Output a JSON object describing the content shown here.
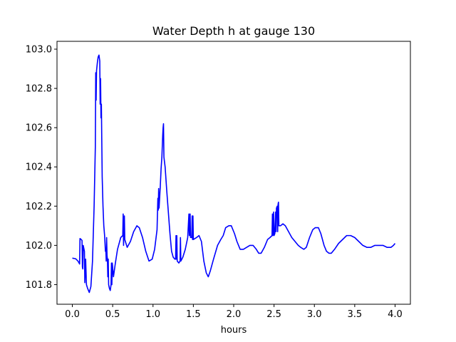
{
  "chart_data": {
    "type": "line",
    "title": "Water Depth h at gauge 130",
    "xlabel": "hours",
    "ylabel": "",
    "xlim": [
      -0.19,
      4.19
    ],
    "ylim": [
      101.7,
      103.04
    ],
    "xticks": [
      0.0,
      0.5,
      1.0,
      1.5,
      2.0,
      2.5,
      3.0,
      3.5,
      4.0
    ],
    "xtick_labels": [
      "0.0",
      "0.5",
      "1.0",
      "1.5",
      "2.0",
      "2.5",
      "3.0",
      "3.5",
      "4.0"
    ],
    "yticks": [
      101.8,
      102.0,
      102.2,
      102.4,
      102.6,
      102.8,
      103.0
    ],
    "ytick_labels": [
      "101.8",
      "102.0",
      "102.2",
      "102.4",
      "102.6",
      "102.8",
      "103.0"
    ],
    "grid": false,
    "legend": "none",
    "series": [
      {
        "color": "#0000ff",
        "points": [
          [
            0.0,
            101.935
          ],
          [
            0.04,
            101.932
          ],
          [
            0.07,
            101.92
          ],
          [
            0.09,
            101.905
          ],
          [
            0.095,
            102.035
          ],
          [
            0.11,
            102.03
          ],
          [
            0.12,
            102.025
          ],
          [
            0.125,
            101.89
          ],
          [
            0.13,
            101.88
          ],
          [
            0.135,
            102.0
          ],
          [
            0.15,
            101.97
          ],
          [
            0.155,
            101.81
          ],
          [
            0.165,
            101.93
          ],
          [
            0.175,
            101.8
          ],
          [
            0.19,
            101.78
          ],
          [
            0.21,
            101.76
          ],
          [
            0.23,
            101.79
          ],
          [
            0.25,
            101.92
          ],
          [
            0.27,
            102.2
          ],
          [
            0.285,
            102.5
          ],
          [
            0.29,
            102.88
          ],
          [
            0.295,
            102.74
          ],
          [
            0.3,
            102.89
          ],
          [
            0.31,
            102.93
          ],
          [
            0.32,
            102.96
          ],
          [
            0.33,
            102.97
          ],
          [
            0.34,
            102.94
          ],
          [
            0.345,
            102.72
          ],
          [
            0.35,
            102.85
          ],
          [
            0.355,
            102.65
          ],
          [
            0.36,
            102.72
          ],
          [
            0.37,
            102.35
          ],
          [
            0.38,
            102.2
          ],
          [
            0.39,
            102.1
          ],
          [
            0.4,
            102.05
          ],
          [
            0.41,
            101.97
          ],
          [
            0.415,
            101.98
          ],
          [
            0.42,
            101.92
          ],
          [
            0.425,
            102.04
          ],
          [
            0.43,
            101.95
          ],
          [
            0.435,
            101.93
          ],
          [
            0.44,
            101.84
          ],
          [
            0.445,
            101.93
          ],
          [
            0.45,
            101.8
          ],
          [
            0.46,
            101.78
          ],
          [
            0.47,
            101.77
          ],
          [
            0.48,
            101.8
          ],
          [
            0.485,
            101.91
          ],
          [
            0.49,
            101.8
          ],
          [
            0.495,
            101.91
          ],
          [
            0.51,
            101.84
          ],
          [
            0.53,
            101.9
          ],
          [
            0.56,
            101.98
          ],
          [
            0.6,
            102.04
          ],
          [
            0.625,
            102.05
          ],
          [
            0.63,
            102.16
          ],
          [
            0.635,
            102.0
          ],
          [
            0.645,
            102.15
          ],
          [
            0.65,
            102.03
          ],
          [
            0.68,
            101.99
          ],
          [
            0.72,
            102.02
          ],
          [
            0.76,
            102.07
          ],
          [
            0.8,
            102.1
          ],
          [
            0.83,
            102.09
          ],
          [
            0.87,
            102.04
          ],
          [
            0.91,
            101.97
          ],
          [
            0.95,
            101.92
          ],
          [
            0.99,
            101.93
          ],
          [
            1.02,
            101.98
          ],
          [
            1.05,
            102.08
          ],
          [
            1.06,
            102.24
          ],
          [
            1.065,
            102.18
          ],
          [
            1.07,
            102.29
          ],
          [
            1.075,
            102.19
          ],
          [
            1.09,
            102.3
          ],
          [
            1.1,
            102.39
          ],
          [
            1.11,
            102.45
          ],
          [
            1.12,
            102.56
          ],
          [
            1.125,
            102.6
          ],
          [
            1.13,
            102.62
          ],
          [
            1.135,
            102.45
          ],
          [
            1.15,
            102.4
          ],
          [
            1.17,
            102.28
          ],
          [
            1.19,
            102.17
          ],
          [
            1.21,
            102.06
          ],
          [
            1.23,
            101.97
          ],
          [
            1.25,
            101.94
          ],
          [
            1.27,
            101.93
          ],
          [
            1.28,
            101.93
          ],
          [
            1.285,
            102.05
          ],
          [
            1.29,
            101.93
          ],
          [
            1.295,
            102.05
          ],
          [
            1.3,
            101.92
          ],
          [
            1.32,
            101.91
          ],
          [
            1.335,
            101.92
          ],
          [
            1.34,
            102.04
          ],
          [
            1.345,
            101.92
          ],
          [
            1.37,
            101.94
          ],
          [
            1.4,
            101.98
          ],
          [
            1.43,
            102.04
          ],
          [
            1.445,
            102.16
          ],
          [
            1.45,
            102.05
          ],
          [
            1.46,
            102.16
          ],
          [
            1.465,
            102.04
          ],
          [
            1.47,
            102.04
          ],
          [
            1.48,
            102.04
          ],
          [
            1.485,
            102.15
          ],
          [
            1.49,
            102.03
          ],
          [
            1.495,
            102.15
          ],
          [
            1.5,
            102.03
          ],
          [
            1.54,
            102.04
          ],
          [
            1.57,
            102.05
          ],
          [
            1.6,
            102.02
          ],
          [
            1.63,
            101.92
          ],
          [
            1.66,
            101.86
          ],
          [
            1.685,
            101.84
          ],
          [
            1.71,
            101.87
          ],
          [
            1.75,
            101.93
          ],
          [
            1.8,
            102.0
          ],
          [
            1.84,
            102.03
          ],
          [
            1.87,
            102.05
          ],
          [
            1.9,
            102.09
          ],
          [
            1.94,
            102.1
          ],
          [
            1.97,
            102.1
          ],
          [
            2.01,
            102.06
          ],
          [
            2.04,
            102.02
          ],
          [
            2.08,
            101.98
          ],
          [
            2.12,
            101.98
          ],
          [
            2.16,
            101.99
          ],
          [
            2.2,
            102.0
          ],
          [
            2.24,
            102.0
          ],
          [
            2.28,
            101.98
          ],
          [
            2.31,
            101.96
          ],
          [
            2.34,
            101.96
          ],
          [
            2.38,
            101.99
          ],
          [
            2.42,
            102.03
          ],
          [
            2.45,
            102.04
          ],
          [
            2.475,
            102.05
          ],
          [
            2.48,
            102.16
          ],
          [
            2.485,
            102.05
          ],
          [
            2.495,
            102.17
          ],
          [
            2.5,
            102.05
          ],
          [
            2.51,
            102.06
          ],
          [
            2.52,
            102.17
          ],
          [
            2.525,
            102.07
          ],
          [
            2.53,
            102.19
          ],
          [
            2.54,
            102.2
          ],
          [
            2.545,
            102.07
          ],
          [
            2.55,
            102.21
          ],
          [
            2.555,
            102.22
          ],
          [
            2.56,
            102.1
          ],
          [
            2.58,
            102.1
          ],
          [
            2.61,
            102.11
          ],
          [
            2.64,
            102.1
          ],
          [
            2.68,
            102.07
          ],
          [
            2.72,
            102.04
          ],
          [
            2.76,
            102.02
          ],
          [
            2.8,
            102.0
          ],
          [
            2.83,
            101.99
          ],
          [
            2.87,
            101.98
          ],
          [
            2.9,
            101.99
          ],
          [
            2.94,
            102.04
          ],
          [
            2.98,
            102.08
          ],
          [
            3.01,
            102.09
          ],
          [
            3.05,
            102.09
          ],
          [
            3.08,
            102.06
          ],
          [
            3.12,
            102.0
          ],
          [
            3.15,
            101.97
          ],
          [
            3.18,
            101.96
          ],
          [
            3.21,
            101.96
          ],
          [
            3.25,
            101.98
          ],
          [
            3.3,
            102.01
          ],
          [
            3.35,
            102.03
          ],
          [
            3.4,
            102.05
          ],
          [
            3.45,
            102.05
          ],
          [
            3.5,
            102.04
          ],
          [
            3.55,
            102.02
          ],
          [
            3.6,
            102.0
          ],
          [
            3.65,
            101.99
          ],
          [
            3.7,
            101.99
          ],
          [
            3.75,
            102.0
          ],
          [
            3.8,
            102.0
          ],
          [
            3.85,
            102.0
          ],
          [
            3.9,
            101.99
          ],
          [
            3.95,
            101.99
          ],
          [
            3.98,
            102.0
          ],
          [
            4.0,
            102.01
          ]
        ]
      }
    ]
  }
}
